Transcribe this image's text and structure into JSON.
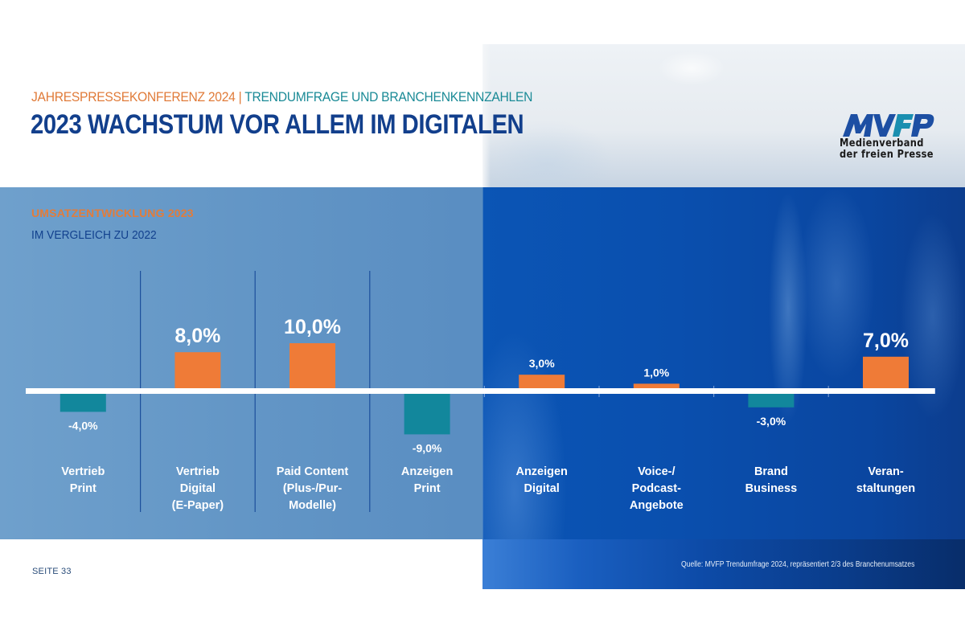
{
  "header": {
    "kicker_part1": "JAHRESPRESSEKONFERENZ 2024",
    "kicker_separator": " | ",
    "kicker_part2": "TRENDUMFRAGE UND BRANCHENKENNZAHLEN",
    "title": "2023 WACHSTUM VOR ALLEM IM DIGITALEN"
  },
  "logo": {
    "mark": "MVFP",
    "line1": "Medienverband",
    "line2": "der freien Presse",
    "colors": {
      "primary": "#1d4fa3",
      "accent": "#1a8fb0"
    }
  },
  "colors": {
    "positive": "#ef7b37",
    "negative": "#12879c",
    "baseline": "#ffffff",
    "label": "#ffffff",
    "title": "#123f8c"
  },
  "footer": {
    "page": "SEITE 33",
    "source": "Quelle: MVFP Trendumfrage 2024, repräsentiert 2/3 des Branchenumsatzes"
  },
  "chart_data": {
    "type": "bar",
    "title": "UMSATZENTWICKLUNG 2023",
    "subtitle": "IM VERGLEICH ZU 2022",
    "xlabel": "",
    "ylabel": "",
    "unit": "%",
    "grid": false,
    "categories": [
      [
        "Vertrieb",
        "Print"
      ],
      [
        "Vertrieb",
        "Digital",
        "(E-Paper)"
      ],
      [
        "Paid Content",
        "(Plus-/Pur-",
        "Modelle)"
      ],
      [
        "Anzeigen",
        "Print"
      ],
      [
        "Anzeigen",
        "Digital"
      ],
      [
        "Voice-/",
        "Podcast-",
        "Angebote"
      ],
      [
        "Brand",
        "Business"
      ],
      [
        "Veran-",
        "staltungen"
      ]
    ],
    "values": [
      -4.0,
      8.0,
      10.0,
      -9.0,
      3.0,
      1.0,
      -3.0,
      7.0
    ],
    "value_labels": [
      "-4,0%",
      "8,0%",
      "10,0%",
      "-9,0%",
      "3,0%",
      "1,0%",
      "-3,0%",
      "7,0%"
    ],
    "label_emphasis": [
      "small",
      "large",
      "large",
      "small",
      "small",
      "small",
      "small",
      "large"
    ],
    "ylim": [
      -10,
      12
    ]
  }
}
